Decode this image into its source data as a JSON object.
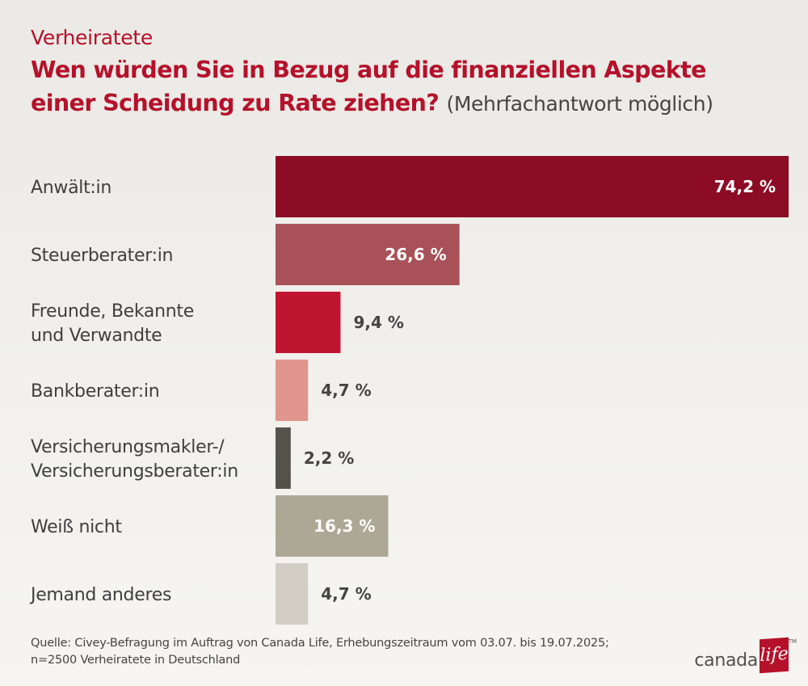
{
  "header": {
    "kicker": "Verheiratete",
    "title_line1": "Wen würden Sie in Bezug auf die finanziellen Aspekte",
    "title_line2": "einer Scheidung zu Rate ziehen?",
    "title_note": "(Mehrfachantwort möglich)"
  },
  "chart_data": {
    "type": "bar",
    "orientation": "horizontal",
    "categories": [
      "Anwält:in",
      "Steuerberater:in",
      "Freunde, Bekannte\nund Verwandte",
      "Bankberater:in",
      "Versicherungsmakler-/\nVersicherungsberater:in",
      "Weiß nicht",
      "Jemand anderes"
    ],
    "values": [
      74.2,
      26.6,
      9.4,
      4.7,
      2.2,
      16.3,
      4.7
    ],
    "data_labels": [
      "74,2 %",
      "26,6 %",
      "9,4 %",
      "4,7 %",
      "2,2 %",
      "16,3 %",
      "4,7 %"
    ],
    "bar_colors": [
      "#8b0c24",
      "#a85158",
      "#c01530",
      "#e0968e",
      "#55524b",
      "#aca895",
      "#d2cec6"
    ],
    "label_inside": [
      true,
      true,
      false,
      false,
      false,
      true,
      false
    ],
    "xlim": [
      0,
      74.2
    ],
    "grid": false,
    "legend": "none"
  },
  "footer": {
    "source_line1": "Quelle: Civey-Befragung im Auftrag von Canada Life, Erhebungszeitraum vom 03.07. bis 19.07.2025;",
    "source_line2": "n=2500 Verheiratete in Deutschland"
  },
  "logo": {
    "word": "canada",
    "box_word": "life",
    "tm": "TM"
  }
}
